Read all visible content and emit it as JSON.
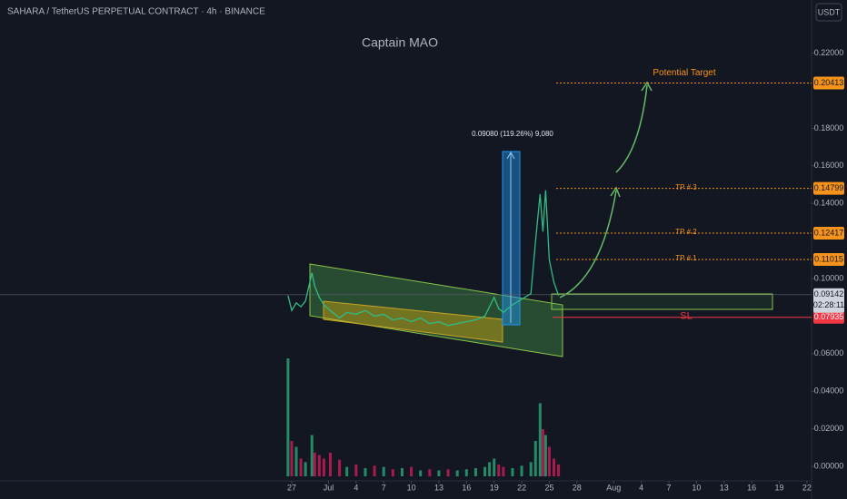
{
  "chart_data": {
    "type": "line",
    "title": "SAHARA / TetherUS PERPETUAL CONTRACT · 4h · BINANCE",
    "watermark": "Captain MAO",
    "currency": "USDT",
    "measure_label": "0.09080 (119.26%) 9,080",
    "xlim": [
      -31.7,
      56.5
    ],
    "ylim": [
      -0.0077,
      0.2483
    ],
    "xticks": [
      {
        "value": 0,
        "label": "27"
      },
      {
        "value": 4,
        "label": "Jul"
      },
      {
        "value": 7,
        "label": "4"
      },
      {
        "value": 10,
        "label": "7"
      },
      {
        "value": 13,
        "label": "10"
      },
      {
        "value": 16,
        "label": "13"
      },
      {
        "value": 19,
        "label": "16"
      },
      {
        "value": 22,
        "label": "19"
      },
      {
        "value": 25,
        "label": "22"
      },
      {
        "value": 28,
        "label": "25"
      },
      {
        "value": 31,
        "label": "28"
      },
      {
        "value": 35,
        "label": "Aug"
      },
      {
        "value": 38,
        "label": "4"
      },
      {
        "value": 41,
        "label": "7"
      },
      {
        "value": 44,
        "label": "10"
      },
      {
        "value": 47,
        "label": "13"
      },
      {
        "value": 50,
        "label": "16"
      },
      {
        "value": 53,
        "label": "19"
      },
      {
        "value": 56,
        "label": "22"
      }
    ],
    "yticks": [
      {
        "value": 0.22,
        "label": "0.22000"
      },
      {
        "value": 0.18,
        "label": "0.18000"
      },
      {
        "value": 0.16,
        "label": "0.16000"
      },
      {
        "value": 0.14,
        "label": "0.14000"
      },
      {
        "value": 0.1,
        "label": "0.10000"
      },
      {
        "value": 0.06,
        "label": "0.06000"
      },
      {
        "value": 0.04,
        "label": "0.04000"
      },
      {
        "value": 0.02,
        "label": "0.02000"
      },
      {
        "value": 0,
        "label": "0.00000"
      }
    ],
    "price": {
      "color": "#2ebd85",
      "down_color": "#e91e63",
      "x": [
        -0.4,
        0,
        0.5,
        1,
        1.5,
        2.2,
        2.5,
        3,
        3.5,
        4.2,
        5.2,
        6,
        7,
        8,
        9,
        10,
        11,
        12,
        13,
        14,
        15,
        16,
        17,
        18,
        19,
        20,
        21,
        21.5,
        22,
        22.5,
        23,
        24,
        25,
        26,
        26.5,
        27,
        27.3,
        27.6,
        28,
        28.5,
        29
      ],
      "values": [
        0.091,
        0.083,
        0.087,
        0.085,
        0.088,
        0.103,
        0.096,
        0.09,
        0.086,
        0.083,
        0.079,
        0.082,
        0.081,
        0.083,
        0.08,
        0.081,
        0.078,
        0.079,
        0.077,
        0.079,
        0.076,
        0.077,
        0.075,
        0.076,
        0.077,
        0.078,
        0.08,
        0.085,
        0.09,
        0.084,
        0.082,
        0.086,
        0.089,
        0.092,
        0.12,
        0.145,
        0.125,
        0.147,
        0.11,
        0.098,
        0.091
      ],
      "volume": [
        100,
        30,
        25,
        15,
        12,
        35,
        20,
        18,
        15,
        20,
        14,
        8,
        10,
        7,
        9,
        8,
        6,
        7,
        8,
        5,
        6,
        5,
        6,
        5,
        6,
        7,
        8,
        12,
        15,
        10,
        8,
        7,
        9,
        12,
        30,
        62,
        40,
        35,
        25,
        15,
        10
      ],
      "volume_ylim": [
        0,
        100
      ]
    },
    "levels": [
      {
        "name": "Potential Target",
        "value": 0.20413,
        "color": "#f7931a"
      },
      {
        "name": "TP # 3",
        "value": 0.14799,
        "color": "#f7931a"
      },
      {
        "name": "TP # 2",
        "value": 0.12417,
        "color": "#f7931a"
      },
      {
        "name": "TP # 1",
        "value": 0.11015,
        "color": "#f7931a"
      },
      {
        "name": "SL",
        "value": 0.07935,
        "color": "#f23645"
      }
    ],
    "last_price": 0.09142,
    "countdown": "02:28:11"
  }
}
